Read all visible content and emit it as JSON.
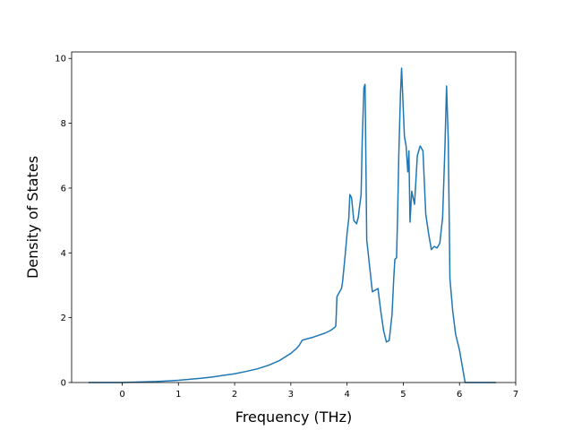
{
  "chart_data": {
    "type": "line",
    "title": "",
    "xlabel": "Frequency (THz)",
    "ylabel": "Density of States",
    "xlim": [
      -0.9,
      7.0
    ],
    "ylim": [
      0,
      10.2
    ],
    "xticks": [
      0,
      1,
      2,
      3,
      4,
      5,
      6,
      7
    ],
    "yticks": [
      0,
      2,
      4,
      6,
      8,
      10
    ],
    "grid": false,
    "legend": "none",
    "line_color": "#1f77b4",
    "series": [
      {
        "x": [
          -0.6,
          -0.4,
          -0.2,
          0.0,
          0.2,
          0.4,
          0.6,
          0.8,
          1.0,
          1.2,
          1.4,
          1.6,
          1.8,
          2.0,
          2.2,
          2.4,
          2.6,
          2.8,
          3.0,
          3.1,
          3.15,
          3.2,
          3.25,
          3.4,
          3.6,
          3.7,
          3.78,
          3.8,
          3.82,
          3.9,
          3.92,
          3.97,
          4.0,
          4.03,
          4.05,
          4.08,
          4.12,
          4.17,
          4.2,
          4.22,
          4.25,
          4.27,
          4.3,
          4.32,
          4.35,
          4.45,
          4.5,
          4.55,
          4.6,
          4.65,
          4.7,
          4.75,
          4.8,
          4.83,
          4.85,
          4.88,
          4.9,
          4.92,
          4.95,
          4.97,
          5.02,
          5.05,
          5.08,
          5.1,
          5.12,
          5.15,
          5.2,
          5.25,
          5.3,
          5.35,
          5.4,
          5.45,
          5.5,
          5.55,
          5.6,
          5.65,
          5.7,
          5.74,
          5.77,
          5.8,
          5.83,
          5.88,
          5.93,
          6.0,
          6.05,
          6.1,
          6.3,
          6.5,
          6.65
        ],
        "y": [
          0,
          0,
          0,
          0,
          0.01,
          0.02,
          0.03,
          0.05,
          0.07,
          0.1,
          0.13,
          0.17,
          0.22,
          0.27,
          0.34,
          0.42,
          0.53,
          0.68,
          0.9,
          1.05,
          1.15,
          1.3,
          1.33,
          1.4,
          1.52,
          1.6,
          1.7,
          1.75,
          2.65,
          2.9,
          3.1,
          4.0,
          4.6,
          5.05,
          5.8,
          5.7,
          5.0,
          4.9,
          5.1,
          5.4,
          5.8,
          7.5,
          9.1,
          9.2,
          4.4,
          2.8,
          2.85,
          2.9,
          2.2,
          1.6,
          1.25,
          1.3,
          2.1,
          3.2,
          3.8,
          3.85,
          5.2,
          7.0,
          8.9,
          9.7,
          7.6,
          7.3,
          6.5,
          7.15,
          4.95,
          5.9,
          5.5,
          7.0,
          7.3,
          7.15,
          5.2,
          4.6,
          4.1,
          4.2,
          4.15,
          4.3,
          5.1,
          7.2,
          9.15,
          7.5,
          3.2,
          2.2,
          1.5,
          1.0,
          0.5,
          0,
          0,
          0,
          0
        ]
      }
    ]
  }
}
